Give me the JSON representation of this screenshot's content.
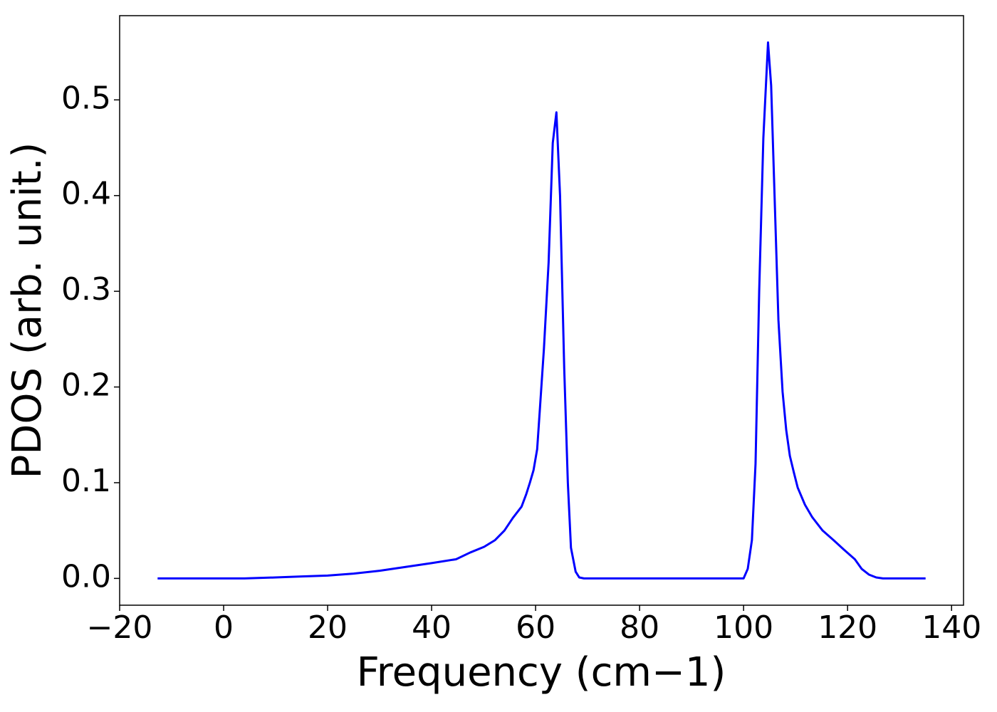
{
  "chart_data": {
    "type": "line",
    "xlabel": "Frequency (cm−1)",
    "ylabel": "PDOS (arb. unit.)",
    "xlim": [
      -20,
      142.3
    ],
    "ylim": [
      -0.028,
      0.588
    ],
    "xticks": [
      {
        "value": -20,
        "label": "−20"
      },
      0,
      20,
      40,
      60,
      80,
      100,
      120,
      140
    ],
    "yticks": [
      {
        "value": 0,
        "label": "0.0"
      },
      0.1,
      0.2,
      0.3,
      0.4,
      0.5
    ],
    "series": [
      {
        "color": "#0000ff",
        "x": [
          -12.7,
          0,
          4,
          10,
          15,
          20,
          25,
          30,
          35,
          40,
          44.7,
          47.4,
          50.1,
          52.2,
          54,
          55.6,
          57.3,
          58.2,
          58.9,
          59.6,
          60.3,
          60.8,
          61.6,
          62.5,
          63.3,
          64.0,
          64.7,
          65.5,
          66.2,
          66.8,
          67.7,
          68.4,
          69.3,
          80,
          100,
          100.8,
          101.6,
          102.3,
          103.0,
          103.8,
          104.7,
          105.3,
          106.7,
          107.5,
          108.2,
          108.9,
          109.7,
          110.4,
          111.8,
          113.2,
          115.2,
          117.3,
          119.3,
          121.4,
          122.7,
          124.1,
          125.5,
          126.8,
          135
        ],
        "values": [
          0,
          0,
          0,
          0.001,
          0.002,
          0.003,
          0.005,
          0.008,
          0.012,
          0.016,
          0.02,
          0.027,
          0.033,
          0.04,
          0.05,
          0.063,
          0.075,
          0.088,
          0.1,
          0.113,
          0.135,
          0.175,
          0.24,
          0.33,
          0.455,
          0.487,
          0.4,
          0.22,
          0.1,
          0.032,
          0.007,
          0.001,
          0,
          0,
          0,
          0.01,
          0.04,
          0.12,
          0.3,
          0.46,
          0.56,
          0.515,
          0.27,
          0.195,
          0.155,
          0.128,
          0.11,
          0.095,
          0.077,
          0.064,
          0.05,
          0.04,
          0.03,
          0.02,
          0.01,
          0.004,
          0.001,
          0,
          0
        ]
      }
    ]
  }
}
